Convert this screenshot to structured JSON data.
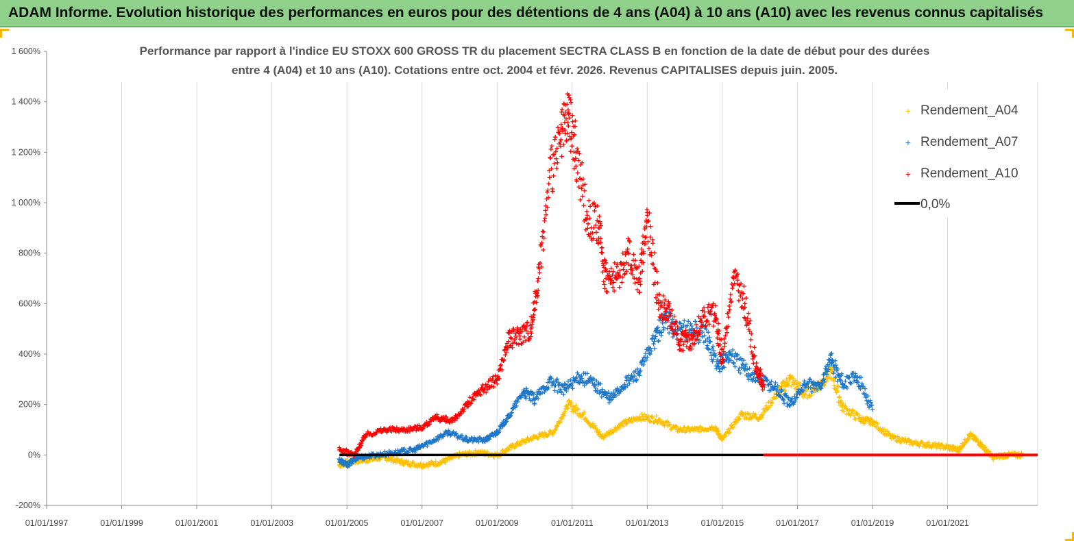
{
  "banner": {
    "title": "ADAM Informe. Evolution historique des performances en euros pour des détentions de 4 ans (A04) à 10 ans (A10) avec les revenus connus capitalisés"
  },
  "chart_data": {
    "type": "scatter",
    "title": "Performance par rapport à l'indice EU STOXX 600 GROSS TR  du placement SECTRA CLASS B en fonction de la date de début pour des durées entre 4 (A04) et 10 ans (A10).  Cotations entre oct. 2004 et févr. 2026. Revenus CAPITALISES depuis juin. 2005.",
    "title_lines": [
      "Performance par rapport à l'indice EU STOXX 600 GROSS TR  du placement SECTRA CLASS B en fonction de la date de début pour des durées",
      "entre 4 (A04) et 10 ans (A10).  Cotations entre oct. 2004 et févr. 2026. Revenus CAPITALISES depuis juin. 2005."
    ],
    "x_range": [
      1997.0,
      2023.4
    ],
    "ylim": [
      -200,
      1600
    ],
    "y_ticks": [
      -200,
      0,
      200,
      400,
      600,
      800,
      1000,
      1200,
      1400,
      1600
    ],
    "y_tick_labels": [
      "-200%",
      "0%",
      "200%",
      "400%",
      "600%",
      "800%",
      "1 000%",
      "1 200%",
      "1 400%",
      "1 600%"
    ],
    "x_ticks": [
      1997,
      1999,
      2001,
      2003,
      2005,
      2007,
      2009,
      2011,
      2013,
      2015,
      2017,
      2019,
      2021
    ],
    "x_tick_labels": [
      "01/01/1997",
      "01/01/1999",
      "01/01/2001",
      "01/01/2003",
      "01/01/2005",
      "01/01/2007",
      "01/01/2009",
      "01/01/2011",
      "01/01/2013",
      "01/01/2015",
      "01/01/2017",
      "01/01/2019",
      "01/01/2021"
    ],
    "legend_position": "top-right",
    "series": [
      {
        "name": "Rendement_A04",
        "color": "#ffc000",
        "marker": "+",
        "x": [
          2004.8,
          2005.0,
          2005.5,
          2006.0,
          2006.5,
          2007.0,
          2007.5,
          2008.0,
          2008.5,
          2009.0,
          2009.5,
          2010.0,
          2010.5,
          2010.9,
          2011.3,
          2011.8,
          2012.3,
          2012.8,
          2013.3,
          2013.8,
          2014.3,
          2014.8,
          2015.0,
          2015.5,
          2016.0,
          2016.5,
          2016.8,
          2017.2,
          2017.6,
          2017.9,
          2018.2,
          2018.7,
          2019.0,
          2019.5,
          2020.0,
          2020.5,
          2021.0,
          2021.3,
          2021.6,
          2021.9,
          2022.2,
          2022.6,
          2023.0
        ],
        "y": [
          -40,
          -30,
          -20,
          -10,
          -30,
          -40,
          -30,
          0,
          10,
          0,
          40,
          70,
          90,
          200,
          160,
          70,
          120,
          150,
          140,
          100,
          100,
          110,
          60,
          160,
          150,
          250,
          300,
          240,
          280,
          330,
          190,
          140,
          130,
          70,
          50,
          40,
          30,
          20,
          80,
          40,
          -10,
          0,
          0
        ]
      },
      {
        "name": "Rendement_A07",
        "color": "#1f77c8",
        "marker": "+",
        "x": [
          2004.8,
          2005.0,
          2005.3,
          2005.8,
          2006.3,
          2006.8,
          2007.2,
          2007.7,
          2008.2,
          2008.7,
          2009.0,
          2009.3,
          2009.7,
          2010.0,
          2010.4,
          2010.8,
          2011.2,
          2011.6,
          2012.0,
          2012.4,
          2012.8,
          2013.2,
          2013.5,
          2013.8,
          2014.2,
          2014.6,
          2014.9,
          2015.2,
          2015.6,
          2016.0,
          2016.4,
          2016.8,
          2017.2,
          2017.6,
          2017.9,
          2018.2,
          2018.6,
          2019.0
        ],
        "y": [
          -20,
          -40,
          -10,
          0,
          10,
          20,
          50,
          90,
          60,
          60,
          90,
          150,
          250,
          220,
          290,
          260,
          310,
          280,
          220,
          280,
          330,
          460,
          550,
          480,
          500,
          460,
          350,
          400,
          340,
          300,
          270,
          200,
          280,
          270,
          380,
          280,
          310,
          180
        ]
      },
      {
        "name": "Rendement_A10",
        "color": "#ff0000",
        "marker": "+",
        "x": [
          2004.8,
          2005.2,
          2005.5,
          2006.0,
          2006.5,
          2007.0,
          2007.4,
          2007.8,
          2008.2,
          2008.6,
          2009.0,
          2009.3,
          2009.6,
          2009.9,
          2010.1,
          2010.4,
          2010.7,
          2010.9,
          2011.1,
          2011.4,
          2011.7,
          2011.9,
          2012.2,
          2012.5,
          2012.8,
          2013.0,
          2013.3,
          2013.6,
          2013.9,
          2014.2,
          2014.5,
          2014.8,
          2015.0,
          2015.3,
          2015.6,
          2015.9,
          2016.1
        ],
        "y": [
          20,
          0,
          80,
          100,
          100,
          110,
          150,
          130,
          200,
          260,
          300,
          450,
          480,
          500,
          700,
          1100,
          1250,
          1350,
          1200,
          950,
          900,
          700,
          700,
          800,
          700,
          950,
          600,
          550,
          450,
          460,
          550,
          560,
          380,
          700,
          600,
          350,
          280
        ]
      },
      {
        "name": "0,0%",
        "color": "#000000",
        "marker": "line",
        "x": [
          2004.8,
          2016.1
        ],
        "y": [
          0,
          0
        ]
      }
    ]
  }
}
